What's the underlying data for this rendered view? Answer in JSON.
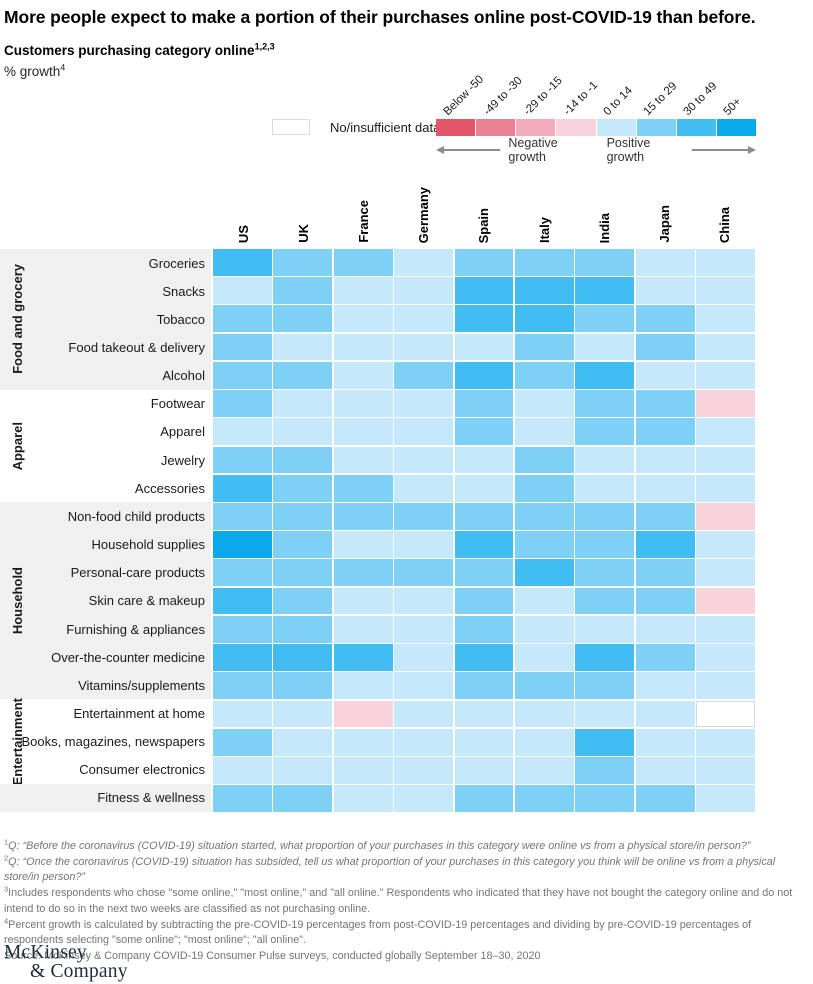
{
  "title": "More people expect to make a portion of their purchases online post-COVID-19 than before.",
  "subtitle": {
    "text": "Customers purchasing category online",
    "sup": "1,2,3"
  },
  "unit": {
    "text": "% growth",
    "sup": "4"
  },
  "legend": {
    "no_data_label": "No/insufficient data",
    "negative_label": "Negative growth",
    "positive_label": "Positive growth",
    "buckets": [
      {
        "label": "Below -50",
        "color": "#e3566a"
      },
      {
        "label": "-49 to -30",
        "color": "#ea8294"
      },
      {
        "label": "-29 to -15",
        "color": "#f2abba"
      },
      {
        "label": "-14 to -1",
        "color": "#f8d3da"
      },
      {
        "label": "0 to 14",
        "color": "#c6e8fb"
      },
      {
        "label": "15 to 29",
        "color": "#7ed0f5"
      },
      {
        "label": "30 to 49",
        "color": "#41bdf2"
      },
      {
        "label": "50+",
        "color": "#0aa9eb"
      }
    ]
  },
  "chart_data": {
    "type": "heatmap",
    "value_unit": "% growth bucket",
    "no_data_value": "no data",
    "columns": [
      "US",
      "UK",
      "France",
      "Germany",
      "Spain",
      "Italy",
      "India",
      "Japan",
      "China"
    ],
    "groups": [
      {
        "label": "Food and grocery",
        "shaded": true,
        "rows": [
          {
            "label": "Groceries",
            "values": [
              "30 to 49",
              "15 to 29",
              "15 to 29",
              "0 to 14",
              "15 to 29",
              "15 to 29",
              "15 to 29",
              "0 to 14",
              "0 to 14"
            ]
          },
          {
            "label": "Snacks",
            "values": [
              "0 to 14",
              "15 to 29",
              "0 to 14",
              "0 to 14",
              "30 to 49",
              "30 to 49",
              "30 to 49",
              "0 to 14",
              "0 to 14"
            ]
          },
          {
            "label": "Tobacco",
            "values": [
              "15 to 29",
              "15 to 29",
              "0 to 14",
              "0 to 14",
              "30 to 49",
              "30 to 49",
              "15 to 29",
              "15 to 29",
              "0 to 14"
            ]
          },
          {
            "label": "Food takeout & delivery",
            "values": [
              "15 to 29",
              "0 to 14",
              "0 to 14",
              "0 to 14",
              "0 to 14",
              "15 to 29",
              "0 to 14",
              "15 to 29",
              "0 to 14"
            ]
          },
          {
            "label": "Alcohol",
            "values": [
              "15 to 29",
              "15 to 29",
              "0 to 14",
              "15 to 29",
              "30 to 49",
              "15 to 29",
              "30 to 49",
              "0 to 14",
              "0 to 14"
            ]
          }
        ]
      },
      {
        "label": "Apparel",
        "shaded": false,
        "rows": [
          {
            "label": "Footwear",
            "values": [
              "15 to 29",
              "0 to 14",
              "0 to 14",
              "0 to 14",
              "15 to 29",
              "0 to 14",
              "15 to 29",
              "15 to 29",
              "-14 to -1"
            ]
          },
          {
            "label": "Apparel",
            "values": [
              "0 to 14",
              "0 to 14",
              "0 to 14",
              "0 to 14",
              "15 to 29",
              "0 to 14",
              "15 to 29",
              "15 to 29",
              "0 to 14"
            ]
          },
          {
            "label": "Jewelry",
            "values": [
              "15 to 29",
              "15 to 29",
              "0 to 14",
              "0 to 14",
              "0 to 14",
              "15 to 29",
              "0 to 14",
              "0 to 14",
              "0 to 14"
            ]
          },
          {
            "label": "Accessories",
            "values": [
              "30 to 49",
              "15 to 29",
              "15 to 29",
              "0 to 14",
              "0 to 14",
              "15 to 29",
              "0 to 14",
              "0 to 14",
              "0 to 14"
            ]
          }
        ]
      },
      {
        "label": "Household",
        "shaded": true,
        "rows": [
          {
            "label": "Non-food child products",
            "values": [
              "15 to 29",
              "15 to 29",
              "15 to 29",
              "15 to 29",
              "15 to 29",
              "15 to 29",
              "15 to 29",
              "15 to 29",
              "-14 to -1"
            ]
          },
          {
            "label": "Household supplies",
            "values": [
              "50+",
              "15 to 29",
              "0 to 14",
              "0 to 14",
              "30 to 49",
              "15 to 29",
              "15 to 29",
              "30 to 49",
              "0 to 14"
            ]
          },
          {
            "label": "Personal-care products",
            "values": [
              "15 to 29",
              "15 to 29",
              "15 to 29",
              "15 to 29",
              "15 to 29",
              "30 to 49",
              "15 to 29",
              "15 to 29",
              "0 to 14"
            ]
          },
          {
            "label": "Skin care & makeup",
            "values": [
              "30 to 49",
              "15 to 29",
              "0 to 14",
              "0 to 14",
              "15 to 29",
              "0 to 14",
              "15 to 29",
              "15 to 29",
              "-14 to -1"
            ]
          },
          {
            "label": "Furnishing & appliances",
            "values": [
              "15 to 29",
              "15 to 29",
              "0 to 14",
              "0 to 14",
              "15 to 29",
              "0 to 14",
              "0 to 14",
              "0 to 14",
              "0 to 14"
            ]
          },
          {
            "label": "Over-the-counter medicine",
            "values": [
              "30 to 49",
              "30 to 49",
              "30 to 49",
              "0 to 14",
              "30 to 49",
              "0 to 14",
              "30 to 49",
              "15 to 29",
              "0 to 14"
            ]
          },
          {
            "label": "Vitamins/supplements",
            "values": [
              "15 to 29",
              "15 to 29",
              "0 to 14",
              "0 to 14",
              "15 to 29",
              "15 to 29",
              "15 to 29",
              "0 to 14",
              "0 to 14"
            ]
          }
        ]
      },
      {
        "label": "Entertainment",
        "shaded": false,
        "rows": [
          {
            "label": "Entertainment at home",
            "values": [
              "0 to 14",
              "0 to 14",
              "-14 to -1",
              "0 to 14",
              "0 to 14",
              "0 to 14",
              "0 to 14",
              "0 to 14",
              "no data"
            ]
          },
          {
            "label": "Books, magazines, newspapers",
            "values": [
              "15 to 29",
              "0 to 14",
              "0 to 14",
              "0 to 14",
              "0 to 14",
              "0 to 14",
              "30 to 49",
              "0 to 14",
              "0 to 14"
            ]
          },
          {
            "label": "Consumer electronics",
            "values": [
              "0 to 14",
              "0 to 14",
              "0 to 14",
              "0 to 14",
              "0 to 14",
              "0 to 14",
              "15 to 29",
              "0 to 14",
              "0 to 14"
            ]
          }
        ]
      },
      {
        "label": "",
        "shaded": true,
        "rows": [
          {
            "label": "Fitness & wellness",
            "values": [
              "15 to 29",
              "15 to 29",
              "0 to 14",
              "0 to 14",
              "15 to 29",
              "15 to 29",
              "15 to 29",
              "15 to 29",
              "0 to 14"
            ]
          }
        ]
      }
    ]
  },
  "footnotes": [
    {
      "sup": "1",
      "italic": true,
      "text": "Q: “Before the coronavirus (COVID-19) situation started, what proportion of your purchases in this category were online vs from a physical store/in person?”"
    },
    {
      "sup": "2",
      "italic": true,
      "text": "Q: “Once the coronavirus (COVID-19) situation has subsided, tell us what proportion of your purchases in this category you think will be online vs from a physical store/in person?”"
    },
    {
      "sup": "3",
      "italic": false,
      "text": "Includes respondents who chose \"some online,\" \"most online,\" and \"all online.\" Respondents who indicated that they have not bought the category online and do not intend to do so in the next two weeks are classified as not purchasing online."
    },
    {
      "sup": "4",
      "italic": false,
      "text": "Percent growth is calculated by subtracting the pre-COVID-19 percentages from post-COVID-19 percentages and dividing by pre-COVID-19 percentages of respondents selecting \"some online\"; \"most online\"; \"all online\"."
    },
    {
      "sup": "",
      "italic": false,
      "text": "Source: McKinsey & Company COVID-19 Consumer Pulse surveys, conducted globally September 18–30, 2020"
    }
  ],
  "logo": {
    "line1": "McKinsey",
    "line2": "& Company"
  }
}
